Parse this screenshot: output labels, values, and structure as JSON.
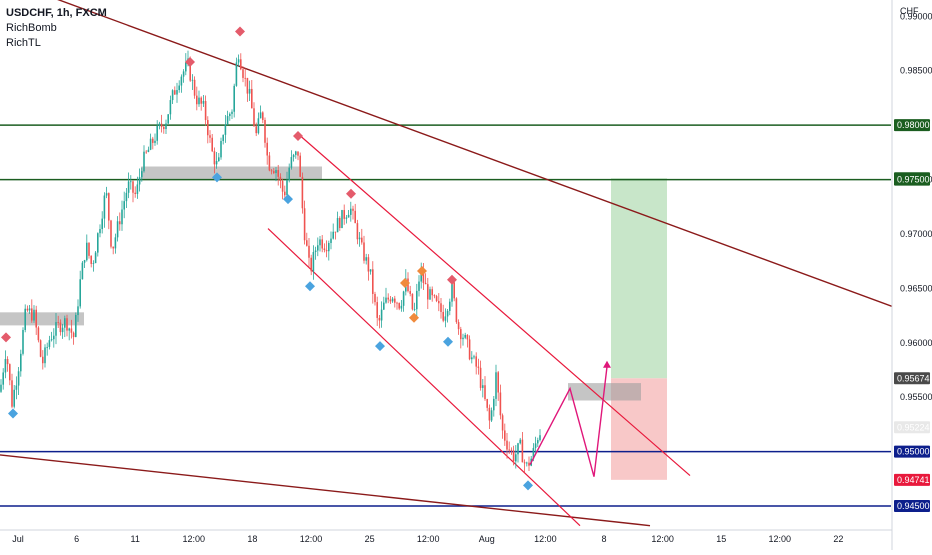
{
  "header": {
    "symbol": "USDCHF, 1h, FXCM",
    "indicators": [
      "RichBomb",
      "RichTL"
    ]
  },
  "colors": {
    "support_resistance": "#1b5e20",
    "blue_level": "#0d1f8c",
    "trendline": "#8b1a1a",
    "channel": "#e8193c",
    "projection": "#e0177a",
    "zone": "#9e9e9e",
    "candle_up": "#26a69a",
    "candle_down": "#ef5350",
    "marker_red": "#e45b6b",
    "marker_blue": "#4aa3df",
    "marker_orange": "#f08a3c",
    "profit_zone": "#c8e6c9",
    "loss_zone": "#f8c8c8"
  },
  "chart_data": {
    "type": "candlestick",
    "title": "USDCHF, 1h, FXCM",
    "currency_label": "CHF",
    "ylim": [
      0.9428,
      0.9915
    ],
    "y_ticks": [
      0.99,
      0.985,
      0.975,
      0.97,
      0.965,
      0.96,
      0.955
    ],
    "y_tick_labels": [
      "0.99000",
      "0.98500",
      "0.97500",
      "0.97000",
      "0.96500",
      "0.96000",
      "0.95500"
    ],
    "x_ticks": [
      "Jul",
      "6",
      "11",
      "12:00",
      "18",
      "12:00",
      "25",
      "12:00",
      "Aug",
      "12:00",
      "8",
      "12:00",
      "15",
      "12:00",
      "22"
    ],
    "price_tags": [
      {
        "label": "0.98000",
        "value": 0.98,
        "color": "#1b5e20"
      },
      {
        "label": "0.97512",
        "value": 0.97512,
        "color": "#1b5e20"
      },
      {
        "label": "0.97500",
        "value": 0.975,
        "color": "#1b5e20"
      },
      {
        "label": "0.95674",
        "value": 0.95674,
        "color": "#4a4a4a"
      },
      {
        "label": "0.95224",
        "value": 0.95224,
        "color": "#e8e8e8"
      },
      {
        "label": "0.95000",
        "value": 0.95,
        "color": "#0d1f8c"
      },
      {
        "label": "0.94741",
        "value": 0.94741,
        "color": "#e8193c"
      },
      {
        "label": "0.94500",
        "value": 0.945,
        "color": "#0d1f8c"
      }
    ],
    "horizontal_levels": [
      {
        "value": 0.98,
        "color": "#1b5e20"
      },
      {
        "value": 0.975,
        "color": "#1b5e20"
      },
      {
        "value": 0.95,
        "color": "#0d1f8c"
      },
      {
        "value": 0.945,
        "color": "#0d1f8c"
      }
    ],
    "price_path": [
      [
        0,
        0.9555
      ],
      [
        6,
        0.9595
      ],
      [
        12,
        0.9545
      ],
      [
        18,
        0.9575
      ],
      [
        26,
        0.963
      ],
      [
        34,
        0.9625
      ],
      [
        42,
        0.958
      ],
      [
        50,
        0.9605
      ],
      [
        58,
        0.9615
      ],
      [
        66,
        0.962
      ],
      [
        74,
        0.9605
      ],
      [
        80,
        0.9655
      ],
      [
        86,
        0.969
      ],
      [
        92,
        0.967
      ],
      [
        100,
        0.971
      ],
      [
        106,
        0.974
      ],
      [
        112,
        0.9685
      ],
      [
        120,
        0.9715
      ],
      [
        128,
        0.9745
      ],
      [
        136,
        0.9735
      ],
      [
        142,
        0.9765
      ],
      [
        150,
        0.978
      ],
      [
        158,
        0.9795
      ],
      [
        166,
        0.9805
      ],
      [
        172,
        0.9825
      ],
      [
        180,
        0.9845
      ],
      [
        188,
        0.9855
      ],
      [
        196,
        0.9825
      ],
      [
        204,
        0.9815
      ],
      [
        212,
        0.9775
      ],
      [
        218,
        0.976
      ],
      [
        224,
        0.98
      ],
      [
        232,
        0.9815
      ],
      [
        238,
        0.987
      ],
      [
        244,
        0.9845
      ],
      [
        250,
        0.9825
      ],
      [
        256,
        0.979
      ],
      [
        262,
        0.9815
      ],
      [
        268,
        0.9765
      ],
      [
        276,
        0.976
      ],
      [
        284,
        0.9735
      ],
      [
        290,
        0.9765
      ],
      [
        298,
        0.9775
      ],
      [
        304,
        0.9705
      ],
      [
        310,
        0.9665
      ],
      [
        318,
        0.9695
      ],
      [
        326,
        0.969
      ],
      [
        334,
        0.9705
      ],
      [
        342,
        0.9715
      ],
      [
        350,
        0.9725
      ],
      [
        356,
        0.9705
      ],
      [
        362,
        0.9685
      ],
      [
        370,
        0.9665
      ],
      [
        378,
        0.9615
      ],
      [
        384,
        0.9635
      ],
      [
        392,
        0.9645
      ],
      [
        400,
        0.9635
      ],
      [
        406,
        0.9655
      ],
      [
        414,
        0.9625
      ],
      [
        420,
        0.9665
      ],
      [
        428,
        0.9645
      ],
      [
        436,
        0.9635
      ],
      [
        444,
        0.9625
      ],
      [
        452,
        0.965
      ],
      [
        458,
        0.9615
      ],
      [
        464,
        0.9605
      ],
      [
        472,
        0.9585
      ],
      [
        478,
        0.9575
      ],
      [
        484,
        0.955
      ],
      [
        490,
        0.9525
      ],
      [
        496,
        0.957
      ],
      [
        502,
        0.952
      ],
      [
        508,
        0.9505
      ],
      [
        514,
        0.9495
      ],
      [
        520,
        0.9505
      ],
      [
        526,
        0.9485
      ],
      [
        532,
        0.9495
      ],
      [
        538,
        0.9515
      ],
      [
        542,
        0.9522
      ]
    ],
    "signal_markers": [
      {
        "x": 6,
        "value": 0.9605,
        "color": "#e45b6b"
      },
      {
        "x": 13,
        "value": 0.9535,
        "color": "#4aa3df"
      },
      {
        "x": 190,
        "value": 0.9858,
        "color": "#e45b6b"
      },
      {
        "x": 217,
        "value": 0.9752,
        "color": "#4aa3df"
      },
      {
        "x": 240,
        "value": 0.9886,
        "color": "#e45b6b"
      },
      {
        "x": 288,
        "value": 0.9732,
        "color": "#4aa3df"
      },
      {
        "x": 298,
        "value": 0.979,
        "color": "#e45b6b"
      },
      {
        "x": 310,
        "value": 0.9652,
        "color": "#4aa3df"
      },
      {
        "x": 351,
        "value": 0.9737,
        "color": "#e45b6b"
      },
      {
        "x": 380,
        "value": 0.9597,
        "color": "#4aa3df"
      },
      {
        "x": 405,
        "value": 0.9655,
        "color": "#f08a3c"
      },
      {
        "x": 414,
        "value": 0.9623,
        "color": "#f08a3c"
      },
      {
        "x": 422,
        "value": 0.9666,
        "color": "#f08a3c"
      },
      {
        "x": 452,
        "value": 0.9658,
        "color": "#e45b6b"
      },
      {
        "x": 448,
        "value": 0.9601,
        "color": "#4aa3df"
      },
      {
        "x": 528,
        "value": 0.9469,
        "color": "#4aa3df"
      }
    ],
    "zones": [
      {
        "x0": 141,
        "x1": 322,
        "y_top": 0.9762,
        "y_bottom": 0.975
      },
      {
        "x0": 0,
        "x1": 84,
        "y_top": 0.9628,
        "y_bottom": 0.9616
      },
      {
        "x0": 568,
        "x1": 641,
        "y_top": 0.9563,
        "y_bottom": 0.9547
      }
    ],
    "trendlines": [
      {
        "x0": 0,
        "y0": 0.9935,
        "x1": 932,
        "y1": 0.962,
        "color": "#8b1a1a"
      },
      {
        "x0": 0,
        "y0": 0.9497,
        "x1": 650,
        "y1": 0.9432,
        "color": "#8b1a1a"
      }
    ],
    "channel_lines": [
      {
        "x0": 298,
        "y0": 0.9792,
        "x1": 690,
        "y1": 0.9478,
        "color": "#e8193c"
      },
      {
        "x0": 268,
        "y0": 0.9705,
        "x1": 580,
        "y1": 0.9432,
        "color": "#e8193c"
      }
    ],
    "projection_path": [
      [
        530,
        0.9488
      ],
      [
        570,
        0.9558
      ],
      [
        594,
        0.9477
      ],
      [
        607,
        0.9578
      ]
    ],
    "position": {
      "x0": 611,
      "x1": 667,
      "target": 0.97512,
      "entry": 0.95674,
      "stop": 0.94741
    }
  }
}
